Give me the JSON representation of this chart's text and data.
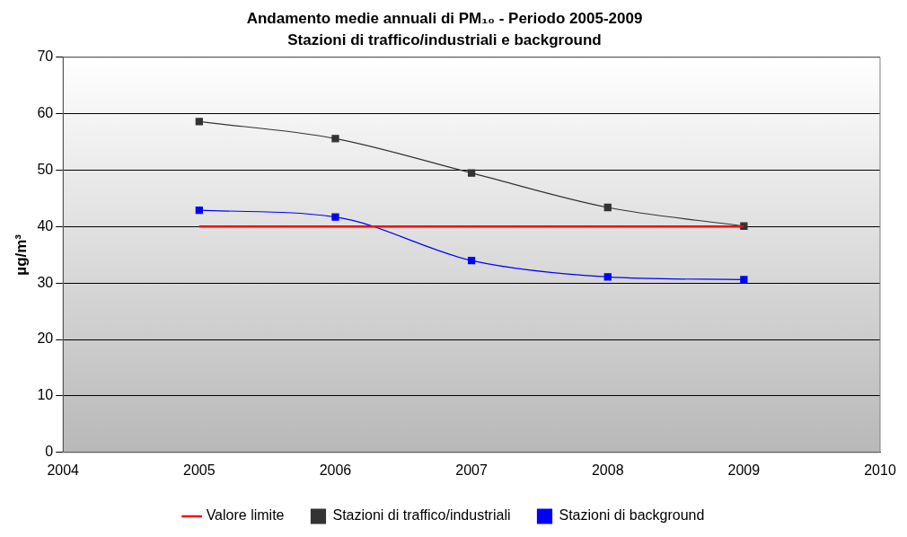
{
  "chart_data": {
    "type": "line",
    "title": "Andamento medie annuali di PM₁₀ - Periodo 2005-2009",
    "subtitle": "Stazioni di traffico/industriali e background",
    "ylabel": "µg/m³",
    "x": [
      2005,
      2006,
      2007,
      2008,
      2009
    ],
    "series": [
      {
        "name": "Stazioni di traffico/industriali",
        "color": "#333333",
        "values": [
          58.6,
          55.6,
          49.5,
          43.4,
          40.1
        ],
        "marker": "square"
      },
      {
        "name": "Stazioni di background",
        "color": "#0000ff",
        "values": [
          42.9,
          41.7,
          34.0,
          31.1,
          30.6
        ],
        "marker": "square"
      },
      {
        "name": "Valore limite",
        "color": "#ff0000",
        "x": [
          2005,
          2009
        ],
        "values": [
          40,
          40
        ],
        "marker": "none"
      }
    ],
    "xlim": [
      2004,
      2010
    ],
    "xticks": [
      2004,
      2005,
      2006,
      2007,
      2008,
      2009,
      2010
    ],
    "ylim": [
      0,
      70
    ],
    "yticks": [
      0,
      10,
      20,
      30,
      40,
      50,
      60,
      70
    ],
    "grid": "y",
    "legend": "bottom"
  }
}
